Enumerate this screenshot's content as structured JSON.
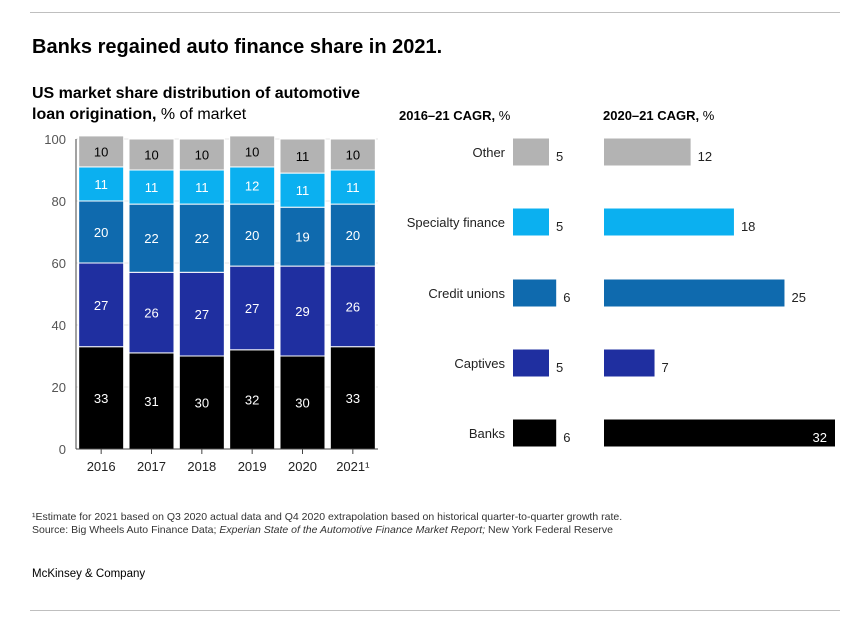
{
  "title": "Banks regained auto finance share in 2021.",
  "subtitle": {
    "bold": "US market share distribution of automotive loan origination,",
    "normal": " % of market"
  },
  "cagr1_header": {
    "bold": "2016–21 CAGR,",
    "normal": " %"
  },
  "cagr2_header": {
    "bold": "2020–21 CAGR,",
    "normal": " %"
  },
  "footnote": {
    "line1": "¹Estimate for 2021 based on Q3 2020 actual data and Q4 2020 extrapolation based on historical quarter-to-quarter growth rate.",
    "source_prefix": " Source: Big Wheels Auto Finance Data; ",
    "source_italic": "Experian State of the Automotive Finance Market  Report;",
    "source_suffix": " New York Federal Reserve"
  },
  "brand": "McKinsey & Company",
  "colors": {
    "Banks": "#000000",
    "Captives": "#1f2fa0",
    "Credit unions": "#0f6aae",
    "Specialty finance": "#0bb0f0",
    "Other": "#b3b3b3"
  },
  "chart_data": [
    {
      "type": "bar",
      "stacked": true,
      "title": "US market share distribution of automotive loan origination, % of market",
      "categories": [
        "2016",
        "2017",
        "2018",
        "2019",
        "2020",
        "2021¹"
      ],
      "series": [
        {
          "name": "Banks",
          "values": [
            33,
            31,
            30,
            32,
            30,
            33
          ]
        },
        {
          "name": "Captives",
          "values": [
            27,
            26,
            27,
            27,
            29,
            26
          ]
        },
        {
          "name": "Credit unions",
          "values": [
            20,
            22,
            22,
            20,
            19,
            20
          ]
        },
        {
          "name": "Specialty finance",
          "values": [
            11,
            11,
            11,
            12,
            11,
            11
          ]
        },
        {
          "name": "Other",
          "values": [
            10,
            10,
            10,
            10,
            11,
            10
          ]
        }
      ],
      "yticks": [
        0,
        20,
        40,
        60,
        80,
        100
      ],
      "ylim": [
        0,
        100
      ]
    },
    {
      "type": "bar",
      "orientation": "horizontal",
      "title": "2016–21 CAGR, %",
      "categories": [
        "Other",
        "Specialty finance",
        "Credit unions",
        "Captives",
        "Banks"
      ],
      "values": [
        5,
        5,
        6,
        5,
        6
      ]
    },
    {
      "type": "bar",
      "orientation": "horizontal",
      "title": "2020–21 CAGR, %",
      "categories": [
        "Other",
        "Specialty finance",
        "Credit unions",
        "Captives",
        "Banks"
      ],
      "values": [
        12,
        18,
        25,
        7,
        32
      ]
    }
  ]
}
